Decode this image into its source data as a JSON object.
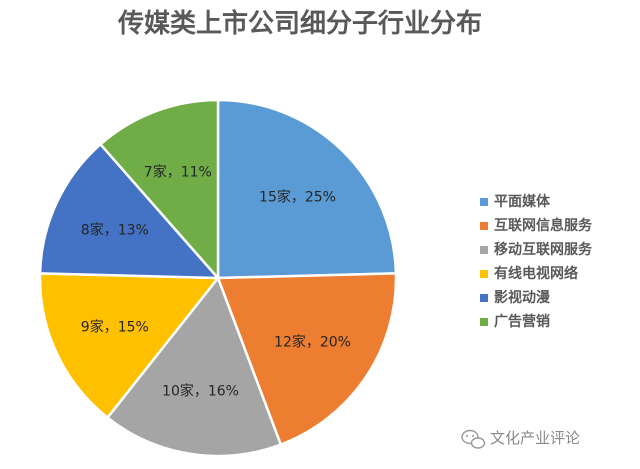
{
  "chart_data": {
    "type": "pie",
    "title": "传媒类上市公司细分子行业分布",
    "slices": [
      {
        "name": "平面媒体",
        "count": 15,
        "percent": 25,
        "label": "15家，25%",
        "color": "#5B9BD5"
      },
      {
        "name": "互联网信息服务",
        "count": 12,
        "percent": 20,
        "label": "12家，20%",
        "color": "#ED7D31"
      },
      {
        "name": "移动互联网服务",
        "count": 10,
        "percent": 16,
        "label": "10家，16%",
        "color": "#A5A5A5"
      },
      {
        "name": "有线电视网络",
        "count": 9,
        "percent": 15,
        "label": "9家，15%",
        "color": "#FFC000"
      },
      {
        "name": "影视动漫",
        "count": 8,
        "percent": 13,
        "label": "8家，13%",
        "color": "#4472C4"
      },
      {
        "name": "广告营销",
        "count": 7,
        "percent": 11,
        "label": "7家，11%",
        "color": "#70AD47"
      }
    ],
    "legend_position": "right"
  },
  "watermark": {
    "text": "文化产业评论",
    "icon": "wechat-icon"
  }
}
